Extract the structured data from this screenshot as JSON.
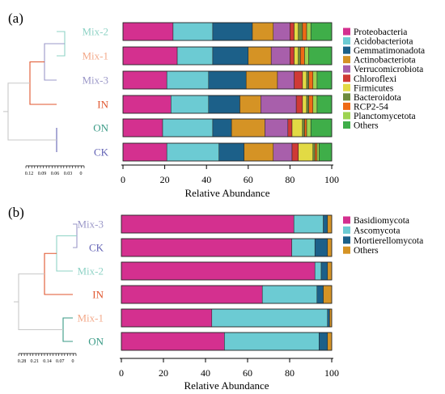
{
  "chart_data": [
    {
      "panel": "(a)",
      "type": "bar",
      "orientation": "horizontal",
      "stacked": true,
      "categories": [
        "Mix-2",
        "Mix-1",
        "Mix-3",
        "IN",
        "ON",
        "CK"
      ],
      "category_colors": [
        "#8fd3c6",
        "#f3a98a",
        "#9b98c8",
        "#e0562e",
        "#3a9a86",
        "#6363b5"
      ],
      "xlabel": "Relative Abundance",
      "xlim": [
        0,
        100
      ],
      "xticks": [
        "0",
        "20",
        "40",
        "60",
        "80",
        "100"
      ],
      "legend_position": "right",
      "series": [
        {
          "name": "Proteobacteria",
          "color": "#d4308f",
          "values": [
            24,
            26,
            21,
            23,
            19,
            21
          ]
        },
        {
          "name": "Acidobacteriota",
          "color": "#6ccbd3",
          "values": [
            19,
            17,
            20,
            18,
            24,
            25
          ]
        },
        {
          "name": "Gemmatimonadota",
          "color": "#1c6089",
          "values": [
            19,
            17,
            18,
            15,
            9,
            12
          ]
        },
        {
          "name": "Actinobacteriota",
          "color": "#d59325",
          "values": [
            10,
            11,
            15,
            10,
            16,
            14
          ]
        },
        {
          "name": "Verrucomicrobiota",
          "color": "#a85fab",
          "values": [
            8,
            9,
            8,
            17,
            11,
            9
          ]
        },
        {
          "name": "Chloroflexi",
          "color": "#cf3a35",
          "values": [
            2,
            2,
            4,
            3,
            2,
            3
          ]
        },
        {
          "name": "Firmicutes",
          "color": "#e2da44",
          "values": [
            2,
            2,
            2,
            2,
            5,
            7
          ]
        },
        {
          "name": "Bacteroidota",
          "color": "#6d8b3e",
          "values": [
            2,
            1,
            1,
            1,
            1,
            1
          ]
        },
        {
          "name": "RCP2-54",
          "color": "#ee6a16",
          "values": [
            2,
            2,
            2,
            2,
            1,
            1
          ]
        },
        {
          "name": "Planctomycetota",
          "color": "#9dd34f",
          "values": [
            2,
            2,
            2,
            2,
            2,
            1
          ]
        },
        {
          "name": "Others",
          "color": "#3fae49",
          "values": [
            10,
            11,
            7,
            7,
            10,
            6
          ]
        }
      ],
      "dendrogram_scale_ticks": [
        "0.12",
        "0.09",
        "0.06",
        "0.03",
        "0"
      ]
    },
    {
      "panel": "(b)",
      "type": "bar",
      "orientation": "horizontal",
      "stacked": true,
      "categories": [
        "Mix-3",
        "CK",
        "Mix-2",
        "IN",
        "Mix-1",
        "ON"
      ],
      "category_colors": [
        "#9b98c8",
        "#6363b5",
        "#8fd3c6",
        "#e0562e",
        "#f3a98a",
        "#3a9a86"
      ],
      "xlabel": "Relative Abundance",
      "xlim": [
        0,
        100
      ],
      "xticks": [
        "0",
        "20",
        "40",
        "60",
        "80",
        "100"
      ],
      "legend_position": "right",
      "series": [
        {
          "name": "Basidiomycota",
          "color": "#d4308f",
          "values": [
            82,
            81,
            92,
            67,
            43,
            49
          ]
        },
        {
          "name": "Ascomycota",
          "color": "#6ccbd3",
          "values": [
            14,
            11,
            3,
            26,
            55,
            45
          ]
        },
        {
          "name": "Mortierellomycota",
          "color": "#1c6089",
          "values": [
            2,
            6,
            3,
            3,
            1,
            4
          ]
        },
        {
          "name": "Others",
          "color": "#d59325",
          "values": [
            2,
            2,
            2,
            4,
            1,
            2
          ]
        }
      ],
      "dendrogram_scale_ticks": [
        "0.28",
        "0.21",
        "0.14",
        "0.07",
        "0"
      ]
    }
  ]
}
